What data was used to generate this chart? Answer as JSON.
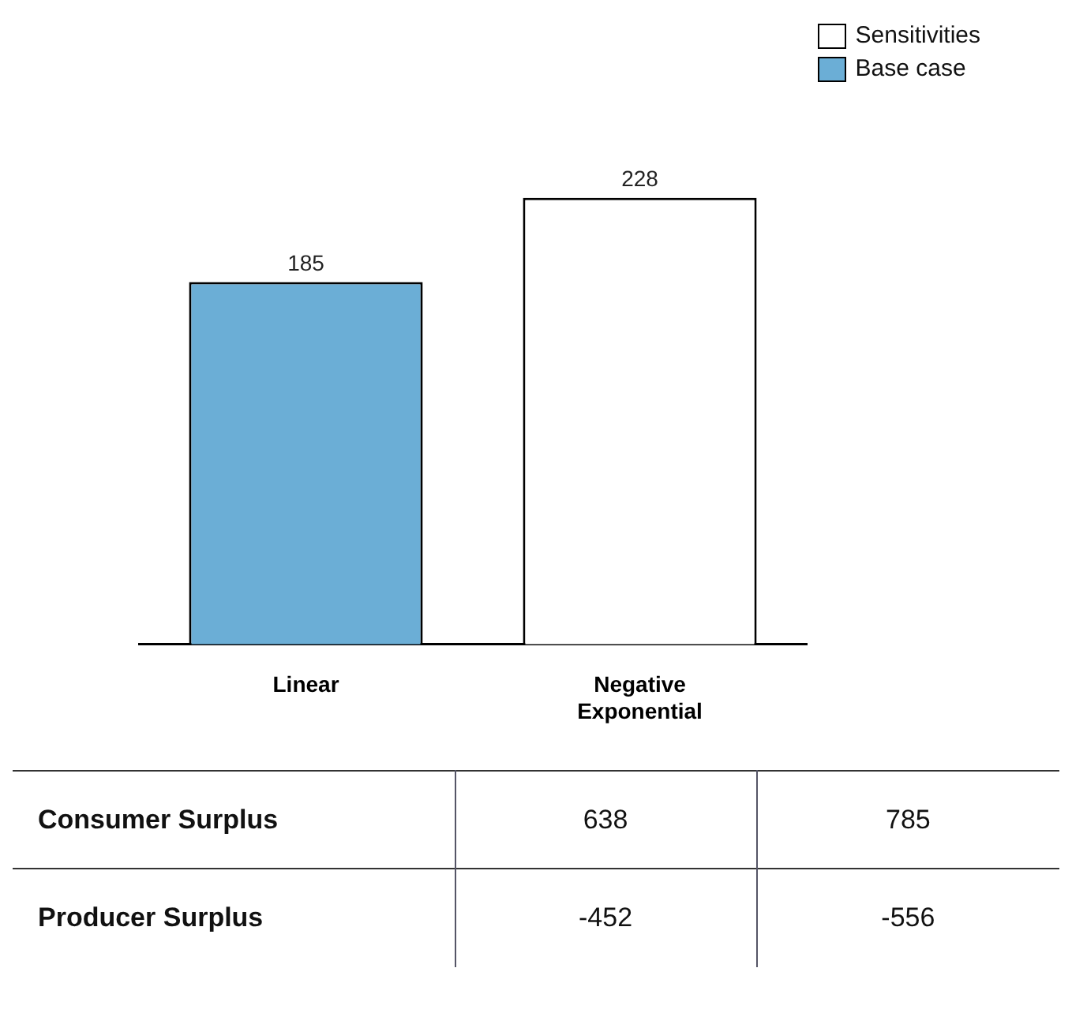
{
  "chart_data": {
    "type": "bar",
    "categories": [
      "Linear",
      "Negative Exponential"
    ],
    "stacked": true,
    "legend": "top right",
    "data_labels": true,
    "grid": false,
    "series": [
      {
        "name": "Sensitivities",
        "color": "#ffffff",
        "values": [
          null,
          228
        ]
      },
      {
        "name": "Base case",
        "color": "#6baed6",
        "values": [
          185,
          null
        ]
      }
    ],
    "annotations": [
      "Consumer Surplus",
      "638",
      "785",
      "Producer Surplus",
      "-452",
      "-556"
    ]
  }
}
